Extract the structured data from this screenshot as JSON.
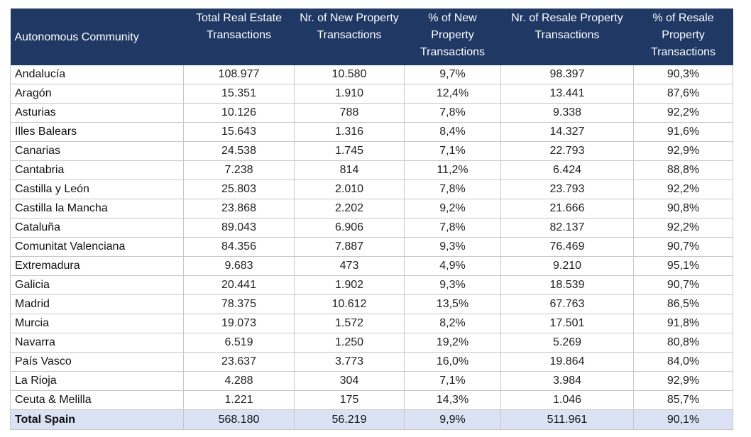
{
  "chart_data": {
    "type": "table",
    "columns": [
      "Autonomous Community",
      "Total Real Estate Transactions",
      "Nr. of New Property Transactions",
      "% of New Property Transactions",
      "Nr. of Resale Property Transactions",
      "% of Resale Property Transactions"
    ],
    "rows": [
      [
        "Andalucía",
        "108.977",
        "10.580",
        "9,7%",
        "98.397",
        "90,3%"
      ],
      [
        "Aragón",
        "15.351",
        "1.910",
        "12,4%",
        "13.441",
        "87,6%"
      ],
      [
        "Asturias",
        "10.126",
        "788",
        "7,8%",
        "9.338",
        "92,2%"
      ],
      [
        "Illes Balears",
        "15.643",
        "1.316",
        "8,4%",
        "14.327",
        "91,6%"
      ],
      [
        "Canarias",
        "24.538",
        "1.745",
        "7,1%",
        "22.793",
        "92,9%"
      ],
      [
        "Cantabria",
        "7.238",
        "814",
        "11,2%",
        "6.424",
        "88,8%"
      ],
      [
        "Castilla y León",
        "25.803",
        "2.010",
        "7,8%",
        "23.793",
        "92,2%"
      ],
      [
        "Castilla la Mancha",
        "23.868",
        "2.202",
        "9,2%",
        "21.666",
        "90,8%"
      ],
      [
        "Cataluña",
        "89.043",
        "6.906",
        "7,8%",
        "82.137",
        "92,2%"
      ],
      [
        "Comunitat Valenciana",
        "84.356",
        "7.887",
        "9,3%",
        "76.469",
        "90,7%"
      ],
      [
        "Extremadura",
        "9.683",
        "473",
        "4,9%",
        "9.210",
        "95,1%"
      ],
      [
        "Galicia",
        "20.441",
        "1.902",
        "9,3%",
        "18.539",
        "90,7%"
      ],
      [
        "Madrid",
        "78.375",
        "10.612",
        "13,5%",
        "67.763",
        "86,5%"
      ],
      [
        "Murcia",
        "19.073",
        "1.572",
        "8,2%",
        "17.501",
        "91,8%"
      ],
      [
        "Navarra",
        "6.519",
        "1.250",
        "19,2%",
        "5.269",
        "80,8%"
      ],
      [
        "País Vasco",
        "23.637",
        "3.773",
        "16,0%",
        "19.864",
        "84,0%"
      ],
      [
        "La Rioja",
        "4.288",
        "304",
        "7,1%",
        "3.984",
        "92,9%"
      ],
      [
        "Ceuta & Melilla",
        "1.221",
        "175",
        "14,3%",
        "1.046",
        "85,7%"
      ]
    ],
    "total": [
      "Total Spain",
      "568.180",
      "56.219",
      "9,9%",
      "511.961",
      "90,1%"
    ],
    "colors": {
      "header_bg": "#1f3864",
      "header_text": "#ffffff",
      "total_bg": "#dbe2f4",
      "grid": "#c7c7c7"
    }
  }
}
